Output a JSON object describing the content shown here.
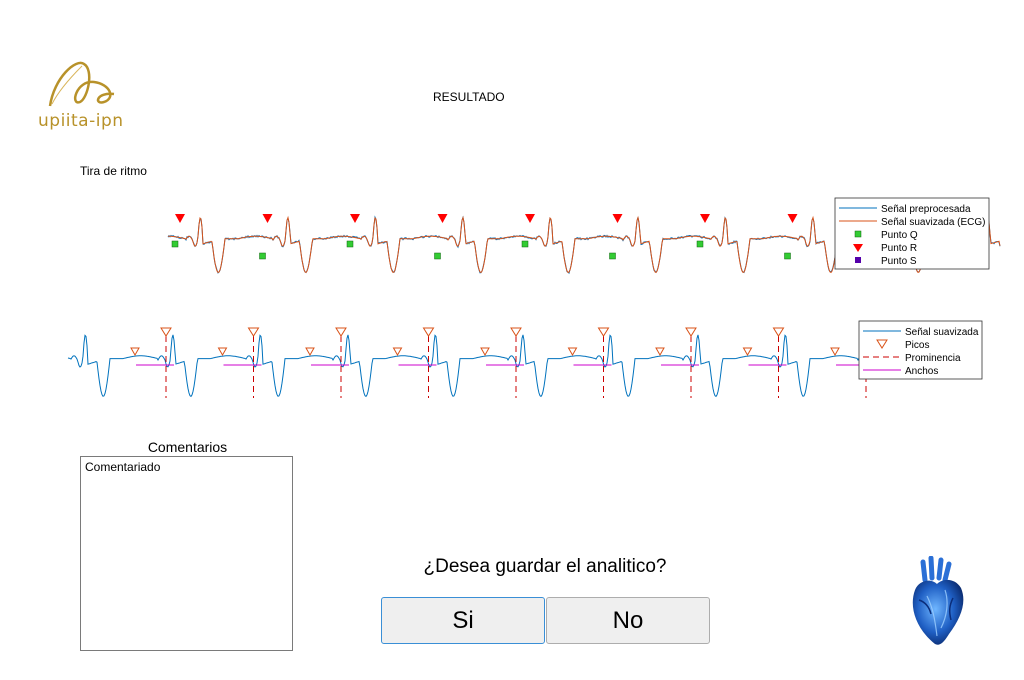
{
  "logo": {
    "text": "upiita-ipn"
  },
  "header": {
    "title": "RESULTADO"
  },
  "strip": {
    "label": "Tira de ritmo"
  },
  "legend1": {
    "items": [
      {
        "label": "Señal preprocesada",
        "color": "#0072bd",
        "symbol": "line"
      },
      {
        "label": "Señal suavizada (ECG)",
        "color": "#d95319",
        "symbol": "line"
      },
      {
        "label": "Punto Q",
        "color": "#33cc33",
        "symbol": "square"
      },
      {
        "label": "Punto R",
        "color": "#ff0000",
        "symbol": "triangle-down"
      },
      {
        "label": "Punto S",
        "color": "#5500aa",
        "symbol": "square"
      }
    ]
  },
  "legend2": {
    "items": [
      {
        "label": "Señal suavizada",
        "color": "#0072bd",
        "symbol": "line"
      },
      {
        "label": "Picos",
        "color": "#d95319",
        "symbol": "triangle-open"
      },
      {
        "label": "Prominencia",
        "color": "#cc0000",
        "symbol": "dashed"
      },
      {
        "label": "Anchos",
        "color": "#cc00cc",
        "symbol": "line"
      }
    ]
  },
  "comments": {
    "title": "Comentarios",
    "value": "Comentariado"
  },
  "dialog": {
    "question": "¿Desea guardar el analitico?",
    "yes_label": "Si",
    "no_label": "No"
  },
  "icons": {
    "logo": "upiita-logo-icon",
    "heart": "anatomical-heart-icon"
  }
}
